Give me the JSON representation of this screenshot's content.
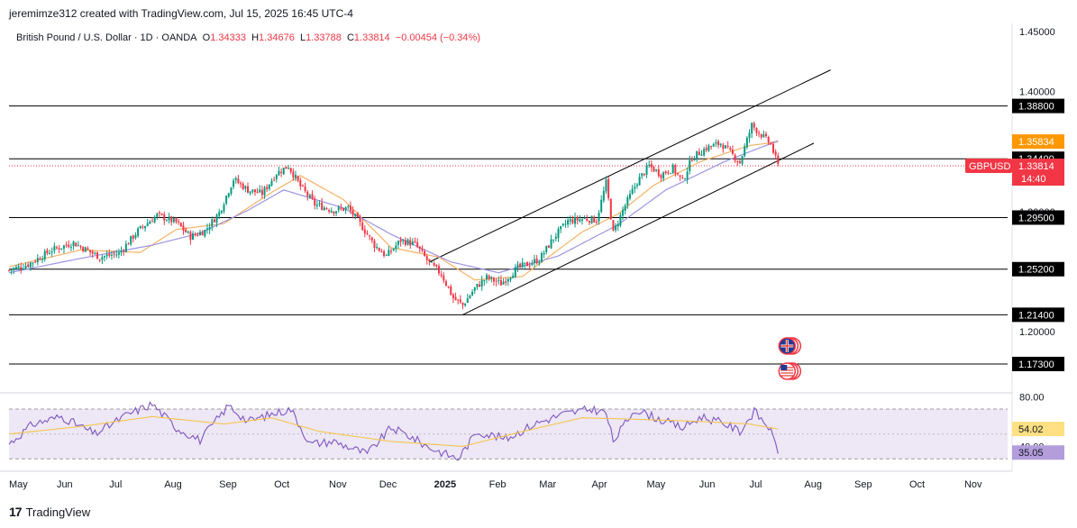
{
  "header": {
    "attribution": "jeremimze312 created with TradingView.com, Jul 15, 2025 16:45 UTC-4",
    "symbol": "British Pound / U.S. Dollar · 1D · OANDA",
    "open_label": "O",
    "open": "1.34333",
    "high_label": "H",
    "high": "1.34676",
    "low_label": "L",
    "low": "1.33788",
    "close_label": "C",
    "close": "1.33814",
    "change": "−0.00454 (−0.34%)"
  },
  "footer": {
    "brand": "TradingView",
    "logo_icon": "tradingview-logo-icon"
  },
  "colors": {
    "up": "#089981",
    "down": "#f23645",
    "ema_long": "#9b95e3",
    "ema_short": "#f7b267",
    "rsi_line": "#7e57c2",
    "rsi_ma": "#f5c64a",
    "rsi_band": "#ede7f6",
    "level_line": "#000000",
    "badge_orange": "#ff9800",
    "badge_red": "#f23645"
  },
  "chart_data": {
    "type": "candlestick",
    "symbol": "GBPUSD",
    "timeframe": "1D",
    "x_months": [
      "May",
      "Jun",
      "Jul",
      "Aug",
      "Sep",
      "Oct",
      "Nov",
      "Dec",
      "2025",
      "Feb",
      "Mar",
      "Apr",
      "May",
      "Jun",
      "Jul",
      "Aug",
      "Sep",
      "Oct",
      "Nov"
    ],
    "ylim": [
      1.16,
      1.455
    ],
    "price_ticks": [
      "1.45000",
      "1.40000",
      "1.20000"
    ],
    "partial_tick": "1.30000",
    "price_tick_values": [
      1.45,
      1.4,
      1.2
    ],
    "partial_tick_value": 1.3,
    "horizontal_levels": [
      {
        "value": 1.388,
        "label": "1.38800"
      },
      {
        "value": 1.344,
        "label": "1.34400"
      },
      {
        "value": 1.295,
        "label": "1.29500"
      },
      {
        "value": 1.252,
        "label": "1.25200"
      },
      {
        "value": 1.214,
        "label": "1.21400"
      },
      {
        "value": 1.173,
        "label": "1.17300"
      }
    ],
    "price_badges": [
      {
        "label": "1.35834",
        "value": 1.35834,
        "color": "orange"
      },
      {
        "label": "1.33814",
        "value": 1.33814,
        "color": "red",
        "name": "GBPUSD",
        "countdown": "14:40"
      }
    ],
    "close_anchors": [
      {
        "t": 0,
        "p": 1.251
      },
      {
        "t": 8,
        "p": 1.256
      },
      {
        "t": 18,
        "p": 1.268
      },
      {
        "t": 27,
        "p": 1.274
      },
      {
        "t": 38,
        "p": 1.262
      },
      {
        "t": 46,
        "p": 1.265
      },
      {
        "t": 54,
        "p": 1.284
      },
      {
        "t": 62,
        "p": 1.297
      },
      {
        "t": 70,
        "p": 1.291
      },
      {
        "t": 76,
        "p": 1.279
      },
      {
        "t": 82,
        "p": 1.284
      },
      {
        "t": 88,
        "p": 1.299
      },
      {
        "t": 94,
        "p": 1.327
      },
      {
        "t": 100,
        "p": 1.318
      },
      {
        "t": 106,
        "p": 1.315
      },
      {
        "t": 112,
        "p": 1.332
      },
      {
        "t": 117,
        "p": 1.338
      },
      {
        "t": 122,
        "p": 1.321
      },
      {
        "t": 128,
        "p": 1.306
      },
      {
        "t": 136,
        "p": 1.301
      },
      {
        "t": 142,
        "p": 1.303
      },
      {
        "t": 148,
        "p": 1.287
      },
      {
        "t": 153,
        "p": 1.272
      },
      {
        "t": 158,
        "p": 1.263
      },
      {
        "t": 164,
        "p": 1.276
      },
      {
        "t": 170,
        "p": 1.273
      },
      {
        "t": 176,
        "p": 1.257
      },
      {
        "t": 181,
        "p": 1.248
      },
      {
        "t": 186,
        "p": 1.228
      },
      {
        "t": 190,
        "p": 1.222
      },
      {
        "t": 195,
        "p": 1.236
      },
      {
        "t": 200,
        "p": 1.245
      },
      {
        "t": 206,
        "p": 1.24
      },
      {
        "t": 213,
        "p": 1.253
      },
      {
        "t": 222,
        "p": 1.26
      },
      {
        "t": 228,
        "p": 1.278
      },
      {
        "t": 234,
        "p": 1.292
      },
      {
        "t": 241,
        "p": 1.294
      },
      {
        "t": 246,
        "p": 1.293
      },
      {
        "t": 250,
        "p": 1.324
      },
      {
        "t": 253,
        "p": 1.282
      },
      {
        "t": 257,
        "p": 1.301
      },
      {
        "t": 263,
        "p": 1.325
      },
      {
        "t": 268,
        "p": 1.338
      },
      {
        "t": 273,
        "p": 1.331
      },
      {
        "t": 278,
        "p": 1.336
      },
      {
        "t": 282,
        "p": 1.325
      },
      {
        "t": 286,
        "p": 1.345
      },
      {
        "t": 292,
        "p": 1.353
      },
      {
        "t": 298,
        "p": 1.357
      },
      {
        "t": 302,
        "p": 1.349
      },
      {
        "t": 306,
        "p": 1.341
      },
      {
        "t": 311,
        "p": 1.372
      },
      {
        "t": 315,
        "p": 1.364
      },
      {
        "t": 319,
        "p": 1.356
      },
      {
        "t": 322,
        "p": 1.338
      }
    ],
    "ema_short_anchors": [
      {
        "t": 0,
        "p": 1.254
      },
      {
        "t": 30,
        "p": 1.268
      },
      {
        "t": 55,
        "p": 1.266
      },
      {
        "t": 70,
        "p": 1.285
      },
      {
        "t": 90,
        "p": 1.29
      },
      {
        "t": 110,
        "p": 1.316
      },
      {
        "t": 122,
        "p": 1.33
      },
      {
        "t": 140,
        "p": 1.31
      },
      {
        "t": 160,
        "p": 1.27
      },
      {
        "t": 180,
        "p": 1.262
      },
      {
        "t": 195,
        "p": 1.243
      },
      {
        "t": 215,
        "p": 1.246
      },
      {
        "t": 240,
        "p": 1.283
      },
      {
        "t": 255,
        "p": 1.298
      },
      {
        "t": 270,
        "p": 1.322
      },
      {
        "t": 290,
        "p": 1.342
      },
      {
        "t": 310,
        "p": 1.355
      },
      {
        "t": 322,
        "p": 1.358
      }
    ],
    "ema_long_anchors": [
      {
        "t": 0,
        "p": 1.249
      },
      {
        "t": 30,
        "p": 1.261
      },
      {
        "t": 60,
        "p": 1.272
      },
      {
        "t": 80,
        "p": 1.282
      },
      {
        "t": 100,
        "p": 1.301
      },
      {
        "t": 115,
        "p": 1.318
      },
      {
        "t": 140,
        "p": 1.303
      },
      {
        "t": 160,
        "p": 1.281
      },
      {
        "t": 185,
        "p": 1.258
      },
      {
        "t": 205,
        "p": 1.249
      },
      {
        "t": 230,
        "p": 1.263
      },
      {
        "t": 255,
        "p": 1.289
      },
      {
        "t": 275,
        "p": 1.318
      },
      {
        "t": 300,
        "p": 1.342
      },
      {
        "t": 322,
        "p": 1.359
      }
    ],
    "channel_lines": [
      {
        "start": {
          "t": 176,
          "p": 1.258
        },
        "end": {
          "t": 344,
          "p": 1.418
        }
      },
      {
        "start": {
          "t": 190,
          "p": 1.214
        },
        "end": {
          "t": 337,
          "p": 1.357
        }
      }
    ],
    "events": [
      {
        "name": "uk-flag-icon",
        "t": 322,
        "p": 1.188
      },
      {
        "name": "us-flag-icon",
        "t": 322,
        "p": 1.167
      }
    ],
    "rsi": {
      "ylim": [
        20,
        86
      ],
      "ticks": [
        "80.00",
        "40.00"
      ],
      "tick_values": [
        80,
        40
      ],
      "band": [
        30,
        70
      ],
      "value_labels": [
        {
          "label": "54.02",
          "value": 54.02,
          "color": "#ffe082"
        },
        {
          "label": "35.05",
          "value": 35.05,
          "color": "#b39ddb"
        }
      ],
      "line_anchors": [
        {
          "t": 0,
          "v": 42
        },
        {
          "t": 10,
          "v": 58
        },
        {
          "t": 22,
          "v": 64
        },
        {
          "t": 36,
          "v": 50
        },
        {
          "t": 50,
          "v": 66
        },
        {
          "t": 60,
          "v": 74
        },
        {
          "t": 70,
          "v": 55
        },
        {
          "t": 80,
          "v": 45
        },
        {
          "t": 92,
          "v": 73
        },
        {
          "t": 100,
          "v": 60
        },
        {
          "t": 110,
          "v": 66
        },
        {
          "t": 118,
          "v": 70
        },
        {
          "t": 126,
          "v": 42
        },
        {
          "t": 136,
          "v": 44
        },
        {
          "t": 150,
          "v": 34
        },
        {
          "t": 160,
          "v": 55
        },
        {
          "t": 168,
          "v": 48
        },
        {
          "t": 176,
          "v": 39
        },
        {
          "t": 188,
          "v": 30
        },
        {
          "t": 196,
          "v": 52
        },
        {
          "t": 208,
          "v": 46
        },
        {
          "t": 220,
          "v": 58
        },
        {
          "t": 232,
          "v": 66
        },
        {
          "t": 244,
          "v": 70
        },
        {
          "t": 250,
          "v": 67
        },
        {
          "t": 253,
          "v": 44
        },
        {
          "t": 262,
          "v": 70
        },
        {
          "t": 272,
          "v": 62
        },
        {
          "t": 282,
          "v": 55
        },
        {
          "t": 290,
          "v": 64
        },
        {
          "t": 300,
          "v": 58
        },
        {
          "t": 306,
          "v": 52
        },
        {
          "t": 312,
          "v": 68
        },
        {
          "t": 318,
          "v": 56
        },
        {
          "t": 322,
          "v": 36
        }
      ],
      "ma_anchors": [
        {
          "t": 0,
          "v": 50
        },
        {
          "t": 30,
          "v": 56
        },
        {
          "t": 60,
          "v": 64
        },
        {
          "t": 90,
          "v": 58
        },
        {
          "t": 110,
          "v": 63
        },
        {
          "t": 130,
          "v": 52
        },
        {
          "t": 160,
          "v": 44
        },
        {
          "t": 190,
          "v": 40
        },
        {
          "t": 215,
          "v": 52
        },
        {
          "t": 240,
          "v": 63
        },
        {
          "t": 260,
          "v": 62
        },
        {
          "t": 290,
          "v": 60
        },
        {
          "t": 310,
          "v": 58
        },
        {
          "t": 322,
          "v": 54
        }
      ]
    }
  }
}
